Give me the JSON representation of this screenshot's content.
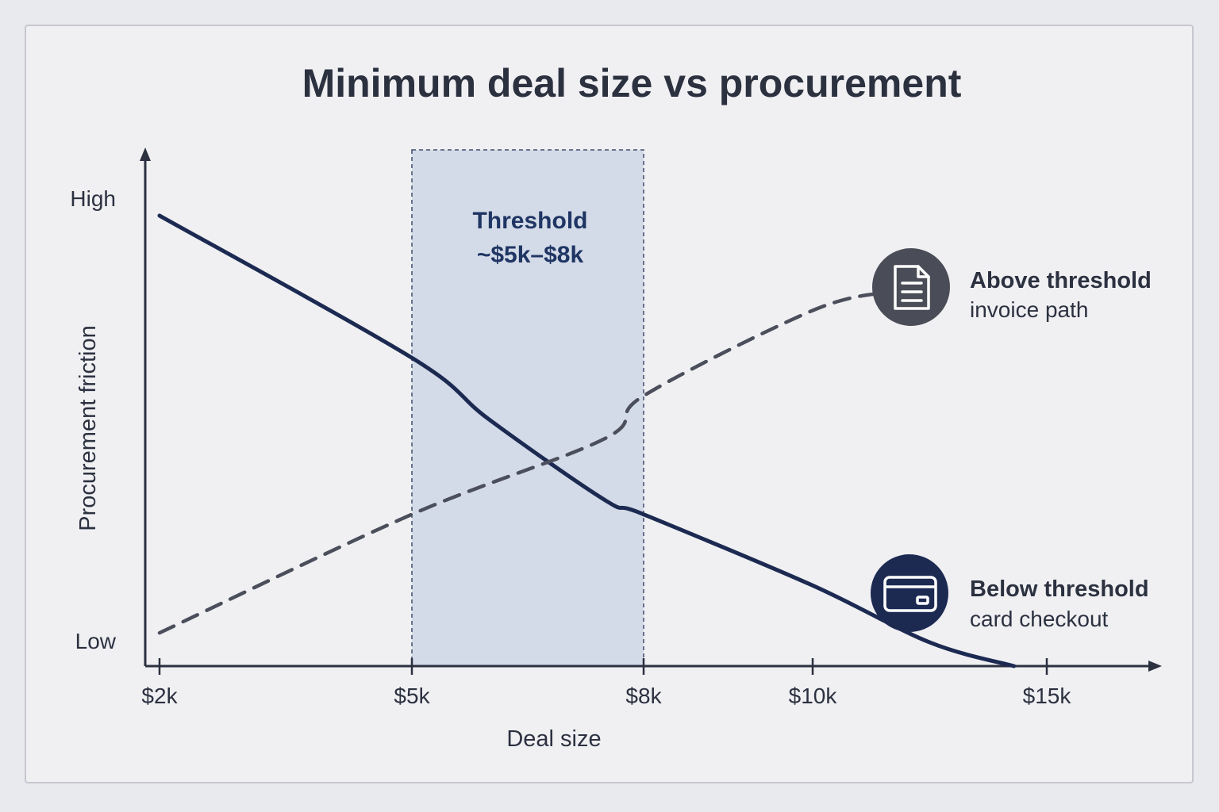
{
  "chart_data": {
    "type": "line",
    "title": "Minimum deal size vs procurement",
    "xlabel": "Deal size",
    "ylabel": "Procurement friction",
    "x_ticks": [
      {
        "value": 2000,
        "label": "$2k"
      },
      {
        "value": 5000,
        "label": "$5k"
      },
      {
        "value": 8000,
        "label": "$8k"
      },
      {
        "value": 10000,
        "label": "$10k"
      },
      {
        "value": 15000,
        "label": "$15k"
      }
    ],
    "y_tick_labels": {
      "high": "High",
      "low": "Low"
    },
    "ylim": [
      0,
      1
    ],
    "threshold_band": {
      "from": 5000,
      "to": 8000,
      "label_line1": "Threshold",
      "label_line2": "~$5k–$8k"
    },
    "series": [
      {
        "key": "card",
        "style": "solid",
        "color": "#1c2a52",
        "points": [
          [
            2000,
            0.95
          ],
          [
            5000,
            0.65
          ],
          [
            6000,
            0.52
          ],
          [
            7500,
            0.35
          ],
          [
            8000,
            0.32
          ],
          [
            10000,
            0.17
          ],
          [
            12500,
            0.05
          ],
          [
            14300,
            0.0
          ]
        ]
      },
      {
        "key": "invoice",
        "style": "dashed",
        "color": "#4b4f5b",
        "points": [
          [
            2000,
            0.07
          ],
          [
            5000,
            0.32
          ],
          [
            7500,
            0.48
          ],
          [
            8000,
            0.57
          ],
          [
            10000,
            0.75
          ],
          [
            11700,
            0.79
          ]
        ]
      }
    ],
    "annotations": [
      {
        "title": "Above threshold",
        "subtitle": "invoice path",
        "icon": "document-icon",
        "color": "#4a4d57"
      },
      {
        "title": "Below threshold",
        "subtitle": "card checkout",
        "icon": "credit-card-icon",
        "color": "#1c2a52"
      }
    ],
    "grid": false,
    "legend": "none"
  }
}
